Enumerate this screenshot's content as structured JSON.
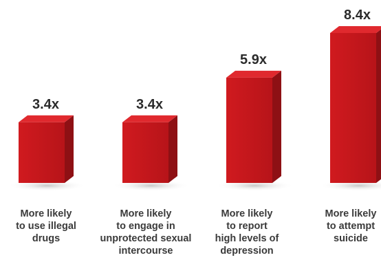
{
  "chart_data": {
    "type": "bar",
    "categories": [
      [
        "More likely",
        "to use illegal",
        "drugs"
      ],
      [
        "More likely",
        "to engage in",
        "unprotected sexual",
        "intercourse"
      ],
      [
        "More likely",
        "to report",
        "high levels of",
        "depression"
      ],
      [
        "More likely",
        "to attempt",
        "suicide"
      ]
    ],
    "values": [
      3.4,
      3.4,
      5.9,
      8.4
    ],
    "value_labels": [
      "3.4x",
      "3.4x",
      "5.9x",
      "8.4x"
    ],
    "title": "",
    "xlabel": "",
    "ylabel": "",
    "ylim": [
      0,
      8.4
    ],
    "grid": false,
    "legend": "none",
    "colors": {
      "front": "#c8171c",
      "top": "#e0292e",
      "side": "#8e1014",
      "shadow": "#d9d9d9"
    }
  }
}
